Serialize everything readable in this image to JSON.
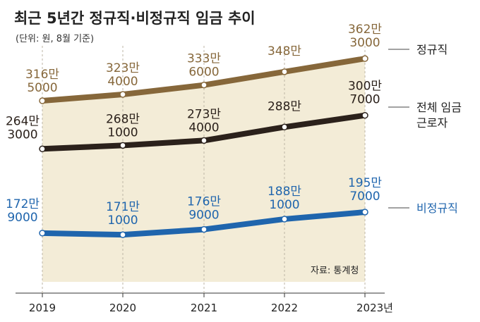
{
  "title": "최근 5년간 정규직·비정규직 임금 추이",
  "subtitle": "(단위: 원, 8월 기준)",
  "source": "자료: 통계청",
  "chart_data": {
    "type": "line",
    "categories": [
      "2019",
      "2020",
      "2021",
      "2022",
      "2023년"
    ],
    "ylim": [
      1200000,
      3800000
    ],
    "series": [
      {
        "name": "정규직",
        "color": "#86673a",
        "values": [
          3165000,
          3234000,
          3336000,
          3480000,
          3623000
        ],
        "labels": [
          [
            "316만",
            "5000"
          ],
          [
            "323만",
            "4000"
          ],
          [
            "333만",
            "6000"
          ],
          [
            "348만",
            ""
          ],
          [
            "362만",
            "3000"
          ]
        ]
      },
      {
        "name": "전체 임금 근로자",
        "legend_lines": [
          "전체 임금",
          "근로자"
        ],
        "color": "#2b211b",
        "values": [
          2643000,
          2681000,
          2734000,
          2880000,
          3007000
        ],
        "labels": [
          [
            "264만",
            "3000"
          ],
          [
            "268만",
            "1000"
          ],
          [
            "273만",
            "4000"
          ],
          [
            "288만",
            ""
          ],
          [
            "300만",
            "7000"
          ]
        ]
      },
      {
        "name": "비정규직",
        "color": "#1f65ad",
        "values": [
          1729000,
          1711000,
          1769000,
          1881000,
          1957000
        ],
        "labels": [
          [
            "172만",
            "9000"
          ],
          [
            "171만",
            "1000"
          ],
          [
            "176만",
            "9000"
          ],
          [
            "188만",
            "1000"
          ],
          [
            "195만",
            "7000"
          ]
        ]
      }
    ]
  }
}
